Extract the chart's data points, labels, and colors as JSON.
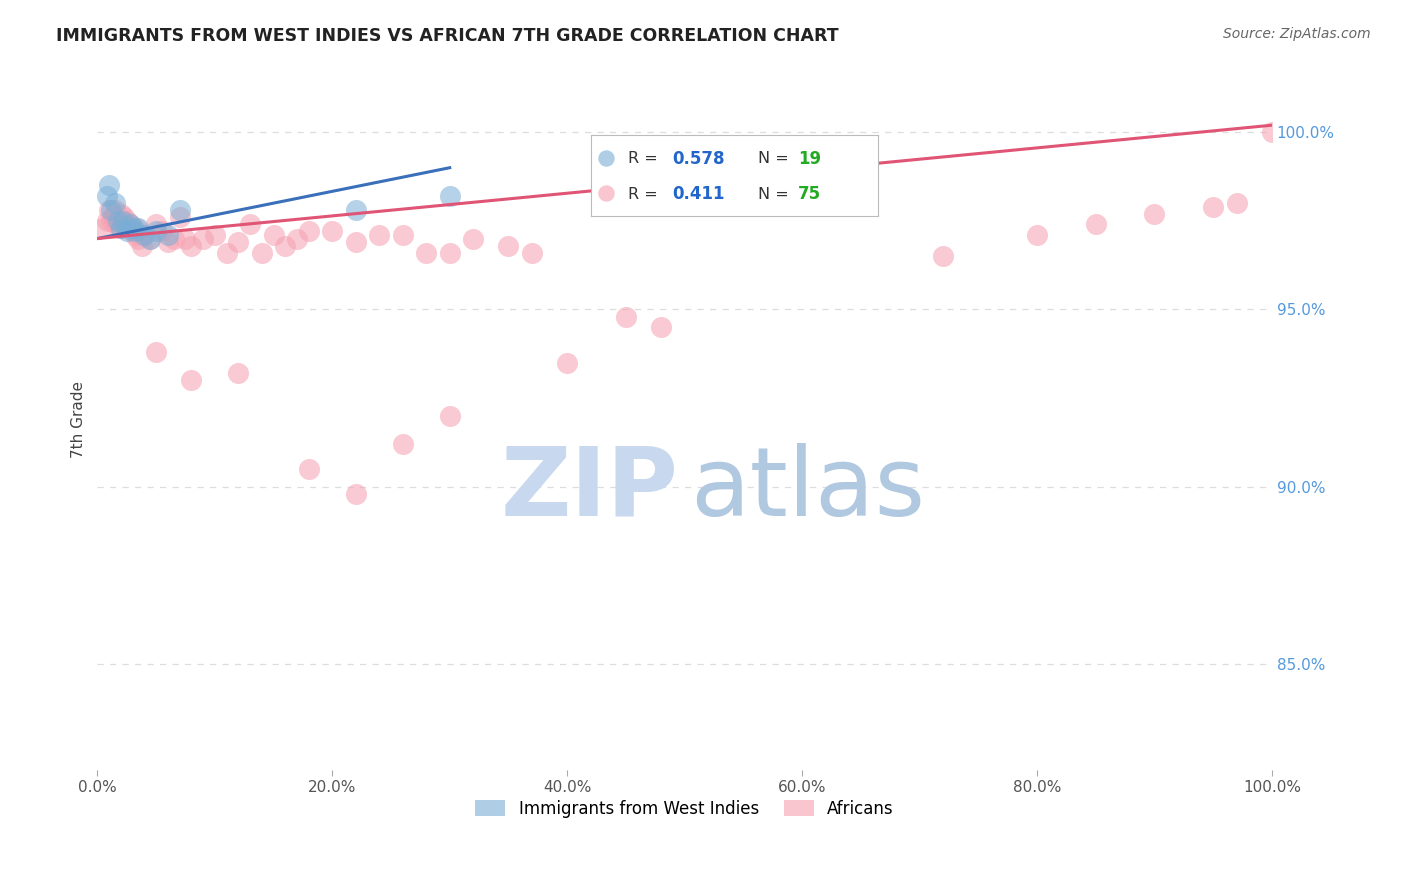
{
  "title": "IMMIGRANTS FROM WEST INDIES VS AFRICAN 7TH GRADE CORRELATION CHART",
  "source": "Source: ZipAtlas.com",
  "ylabel": "7th Grade",
  "x_range": [
    0.0,
    100.0
  ],
  "y_range": [
    82.0,
    101.8
  ],
  "y_ticks": [
    85.0,
    90.0,
    95.0,
    100.0
  ],
  "y_tick_labels": [
    "85.0%",
    "90.0%",
    "95.0%",
    "100.0%"
  ],
  "x_ticks": [
    0,
    20,
    40,
    60,
    80,
    100
  ],
  "x_tick_labels": [
    "0.0%",
    "20.0%",
    "40.0%",
    "60.0%",
    "80.0%",
    "100.0%"
  ],
  "legend_r1": "0.578",
  "legend_n1": "19",
  "legend_r2": "0.411",
  "legend_n2": "75",
  "blue_color": "#7aaed6",
  "pink_color": "#f5a0b0",
  "trendline_blue": "#3a6fba",
  "trendline_pink": "#e05575",
  "blue_scatter_x": [
    0.8,
    1.0,
    1.2,
    1.5,
    1.8,
    2.0,
    2.2,
    2.5,
    2.8,
    3.0,
    3.2,
    3.5,
    4.0,
    4.5,
    5.0,
    6.0,
    7.0,
    22.0,
    30.0
  ],
  "blue_scatter_y": [
    98.2,
    98.5,
    97.8,
    98.0,
    97.5,
    97.3,
    97.5,
    97.2,
    97.4,
    97.3,
    97.2,
    97.3,
    97.1,
    97.0,
    97.2,
    97.1,
    97.8,
    97.8,
    98.2
  ],
  "pink_scatter_x": [
    0.5,
    0.8,
    1.0,
    1.2,
    1.3,
    1.5,
    1.6,
    1.8,
    1.9,
    2.0,
    2.1,
    2.2,
    2.3,
    2.5,
    2.6,
    2.8,
    3.0,
    3.2,
    3.3,
    3.5,
    3.8,
    4.0,
    4.5,
    5.0,
    5.5,
    6.0,
    6.5,
    7.0,
    7.5,
    8.0,
    9.0,
    10.0,
    11.0,
    12.0,
    13.0,
    14.0,
    15.0,
    16.0,
    17.0,
    18.0,
    20.0,
    22.0,
    24.0,
    26.0,
    28.0,
    30.0,
    32.0,
    35.0,
    37.0,
    40.0,
    45.0,
    48.0,
    72.0,
    80.0,
    85.0,
    90.0,
    95.0,
    97.0,
    100.0
  ],
  "pink_scatter_y": [
    97.3,
    97.5,
    97.8,
    97.5,
    97.6,
    97.8,
    97.4,
    97.5,
    97.3,
    97.7,
    97.5,
    97.4,
    97.6,
    97.5,
    97.3,
    97.4,
    97.2,
    97.1,
    97.3,
    97.0,
    96.8,
    97.1,
    97.0,
    97.4,
    97.2,
    96.9,
    97.0,
    97.6,
    97.0,
    96.8,
    97.0,
    97.1,
    96.6,
    96.9,
    97.4,
    96.6,
    97.1,
    96.8,
    97.0,
    97.2,
    97.2,
    96.9,
    97.1,
    97.1,
    96.6,
    96.6,
    97.0,
    96.8,
    96.6,
    93.5,
    94.8,
    94.5,
    96.5,
    97.1,
    97.4,
    97.7,
    97.9,
    98.0,
    100.0
  ],
  "pink_outlier_x": [
    5.0,
    8.0,
    12.0,
    18.0,
    22.0,
    26.0,
    30.0
  ],
  "pink_outlier_y": [
    93.8,
    93.0,
    93.2,
    90.5,
    89.8,
    91.2,
    92.0
  ],
  "blue_trend_x": [
    0.0,
    30.0
  ],
  "blue_trend_y": [
    97.0,
    99.0
  ],
  "pink_trend_x": [
    0.0,
    100.0
  ],
  "pink_trend_y": [
    97.0,
    100.2
  ],
  "watermark_zip_color": "#c8d8ee",
  "watermark_atlas_color": "#b0c8e0",
  "background_color": "#FFFFFF",
  "grid_color": "#DDDDDD",
  "title_color": "#222222",
  "source_color": "#666666",
  "ylabel_color": "#444444",
  "tick_color": "#555555",
  "right_tick_color": "#5599dd",
  "legend_r_color": "#333333",
  "legend_val_color": "#2266cc",
  "legend_n_color": "#333333",
  "legend_nval_color": "#22aa22"
}
